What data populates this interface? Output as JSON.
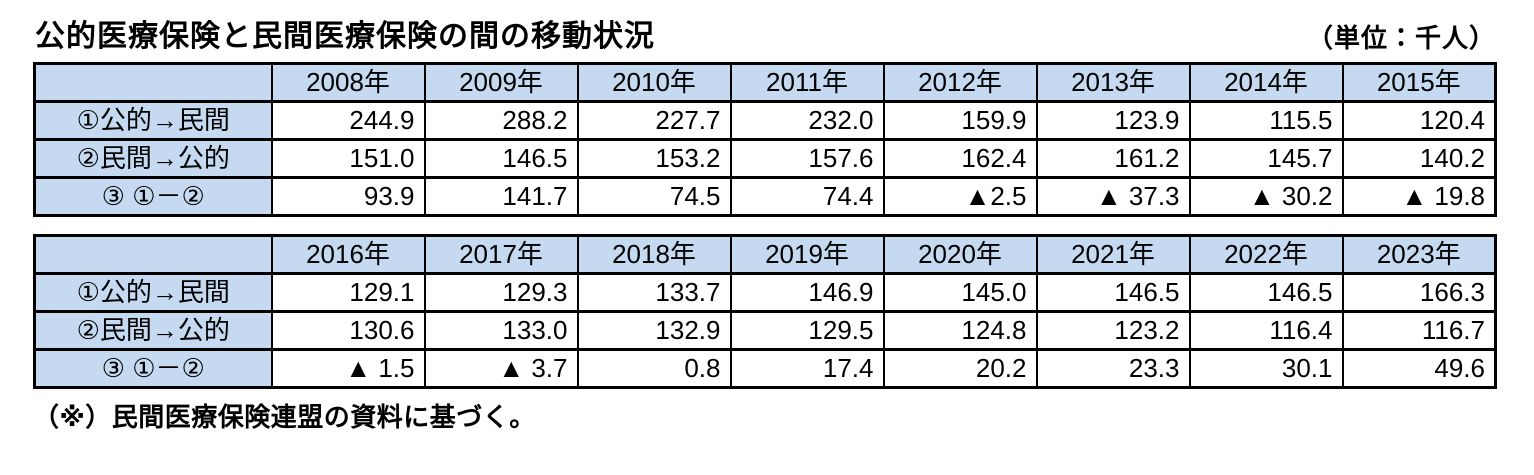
{
  "title": "公的医療保険と民間医療保険の間の移動状況",
  "unit_label": "（単位：千人）",
  "footnote": "（※）民間医療保険連盟の資料に基づく。",
  "colors": {
    "header_fill": "#c5d9f1",
    "border": "#000000",
    "negative_marker": "▲"
  },
  "tables": [
    {
      "years": [
        "2008年",
        "2009年",
        "2010年",
        "2011年",
        "2012年",
        "2013年",
        "2014年",
        "2015年"
      ],
      "rows": [
        {
          "label": "①公的→民間",
          "values": [
            "244.9",
            "288.2",
            "227.7",
            "232.0",
            "159.9",
            "123.9",
            "115.5",
            "120.4"
          ]
        },
        {
          "label": "②民間→公的",
          "values": [
            "151.0",
            "146.5",
            "153.2",
            "157.6",
            "162.4",
            "161.2",
            "145.7",
            "140.2"
          ]
        },
        {
          "label": "③ ①－②",
          "values": [
            "93.9",
            "141.7",
            "74.5",
            "74.4",
            "▲2.5",
            "▲ 37.3",
            "▲ 30.2",
            "▲ 19.8"
          ]
        }
      ]
    },
    {
      "years": [
        "2016年",
        "2017年",
        "2018年",
        "2019年",
        "2020年",
        "2021年",
        "2022年",
        "2023年"
      ],
      "rows": [
        {
          "label": "①公的→民間",
          "values": [
            "129.1",
            "129.3",
            "133.7",
            "146.9",
            "145.0",
            "146.5",
            "146.5",
            "166.3"
          ]
        },
        {
          "label": "②民間→公的",
          "values": [
            "130.6",
            "133.0",
            "132.9",
            "129.5",
            "124.8",
            "123.2",
            "116.4",
            "116.7"
          ]
        },
        {
          "label": "③ ①－②",
          "values": [
            "▲ 1.5",
            "▲ 3.7",
            "0.8",
            "17.4",
            "20.2",
            "23.3",
            "30.1",
            "49.6"
          ]
        }
      ]
    }
  ]
}
